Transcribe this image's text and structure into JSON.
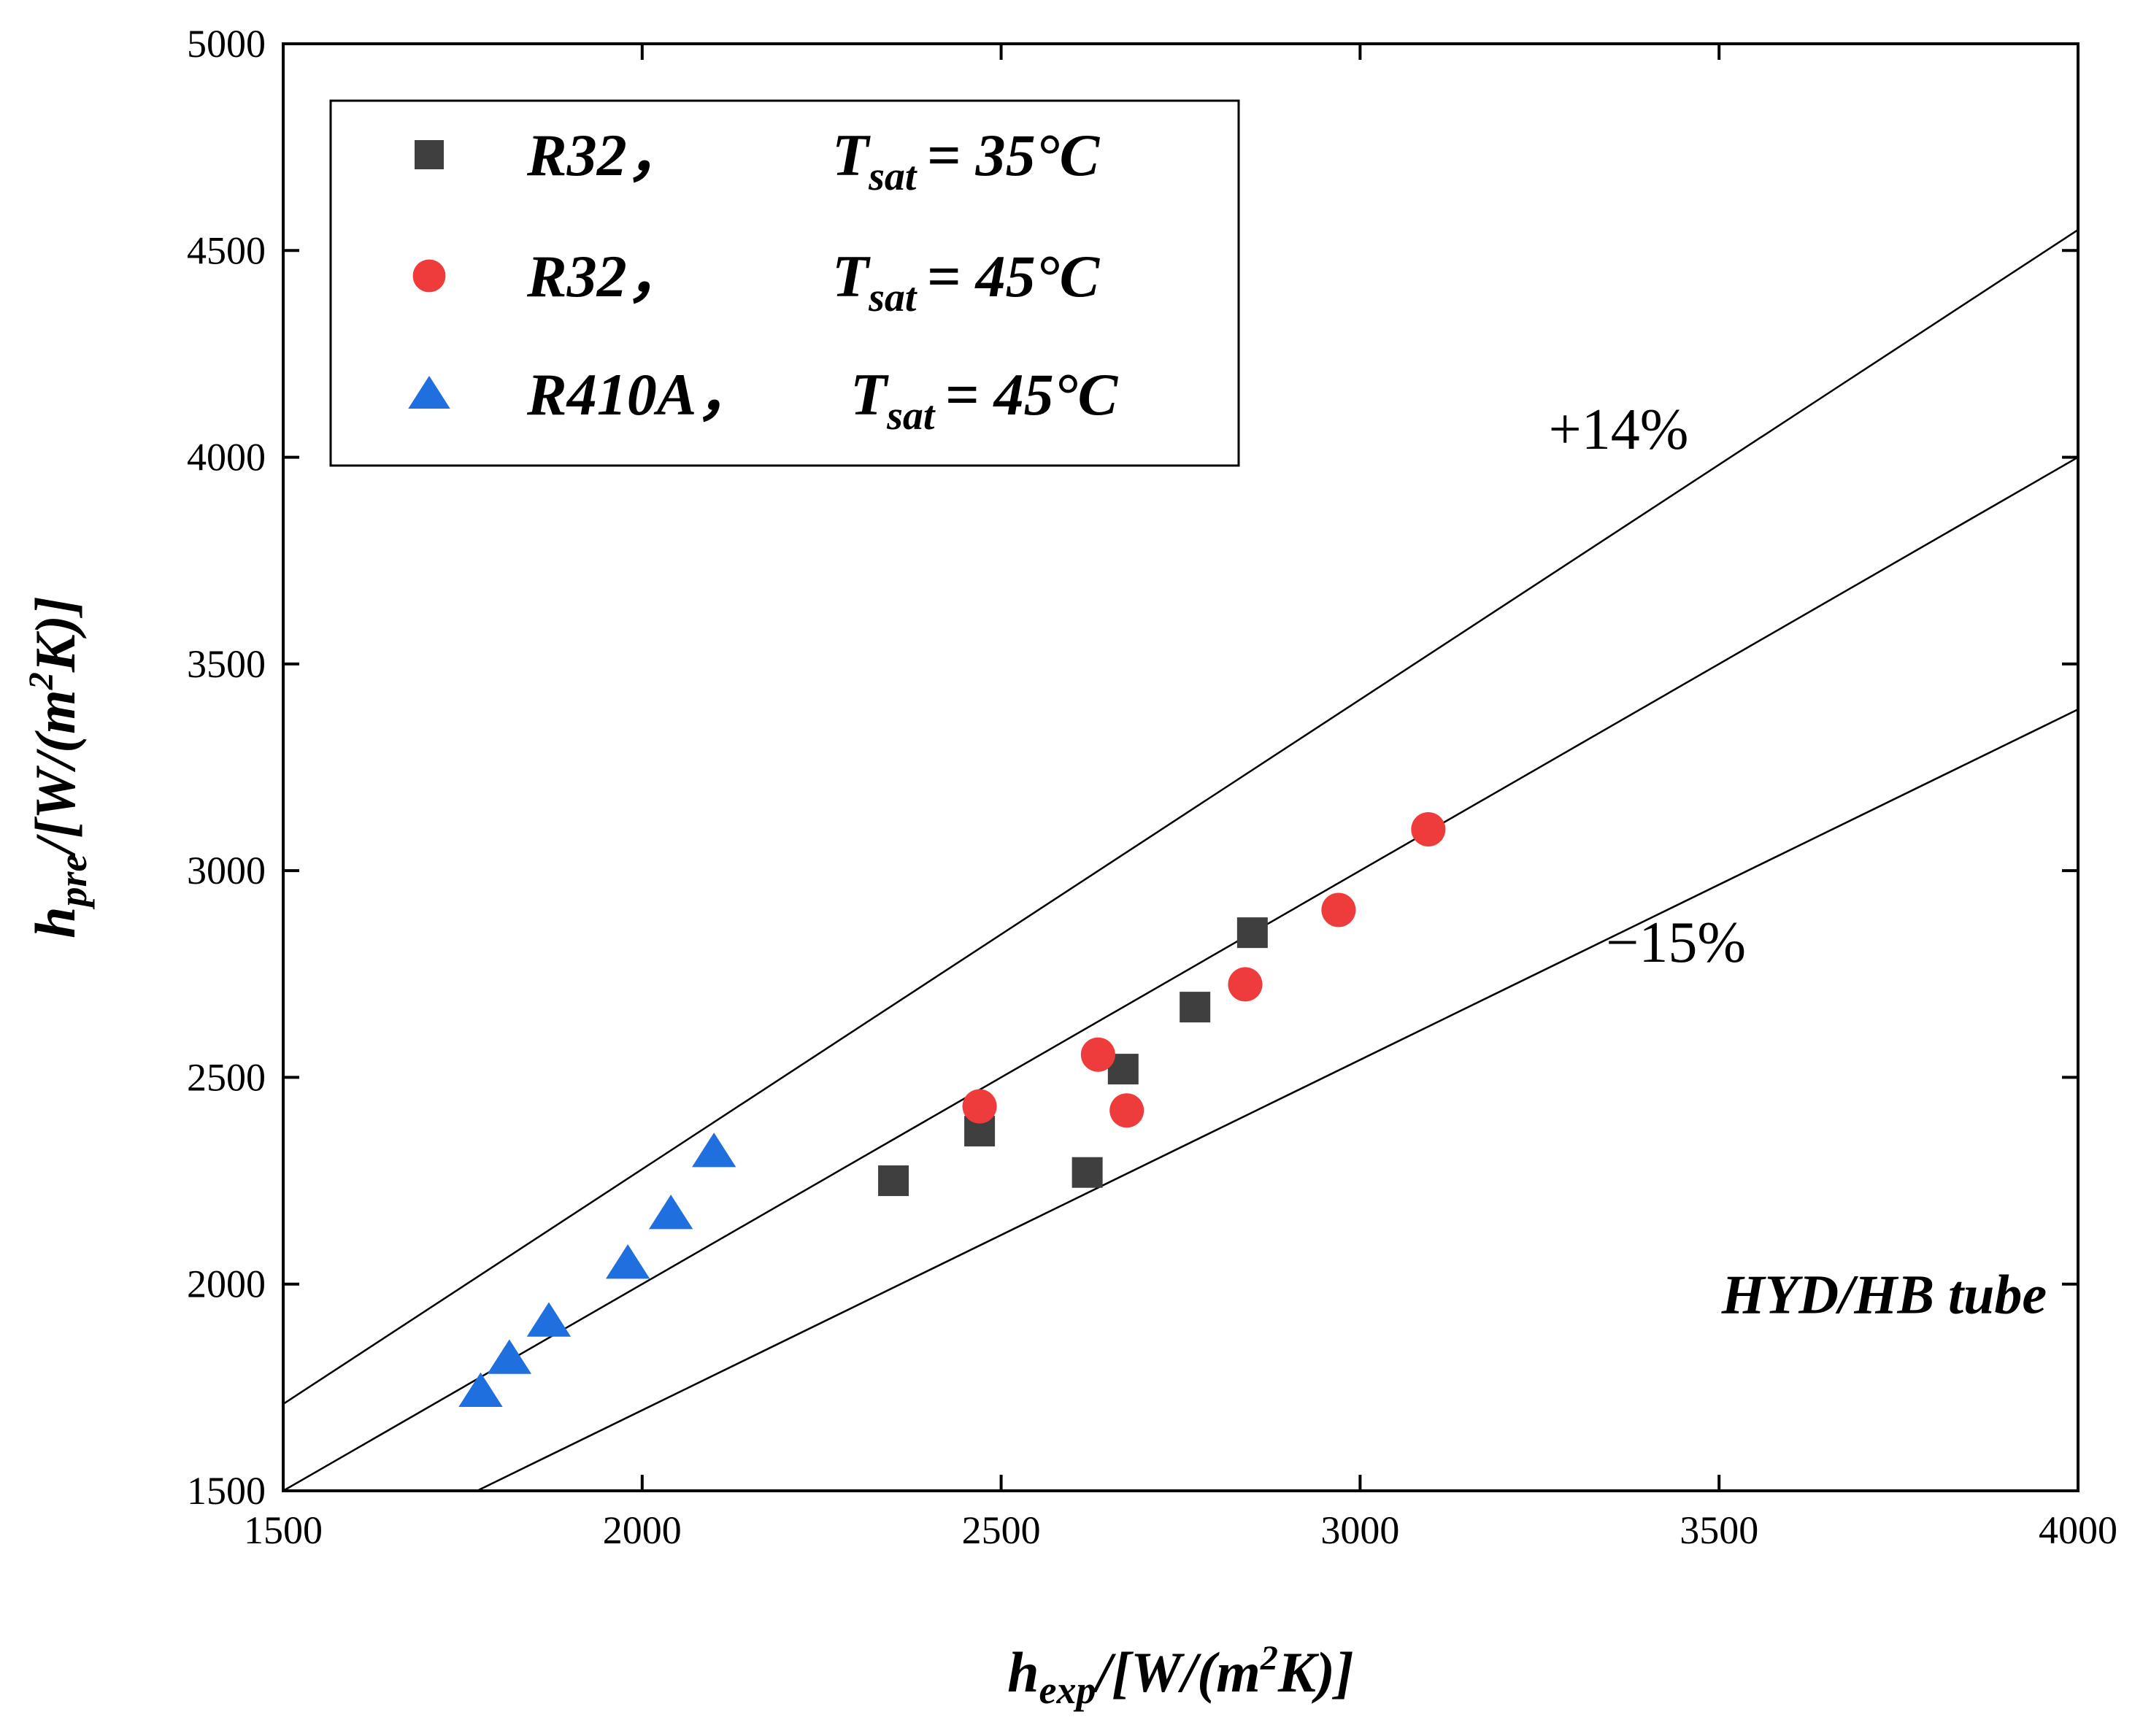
{
  "chart_data": {
    "type": "scatter",
    "title": "",
    "xlabel": "h_exp/[W/(m²K)]",
    "ylabel": "h_pre/[W/(m²K)]",
    "xlabel_parts": {
      "symbol": "h",
      "subscript": "exp",
      "unit_open": "/[W/(m",
      "unit_power": "2",
      "unit_close": "K)]"
    },
    "ylabel_parts": {
      "symbol": "h",
      "subscript": "pre",
      "unit_open": "/[W/(m",
      "unit_power": "2",
      "unit_close": "K)]"
    },
    "xlim": [
      1500,
      4000
    ],
    "ylim": [
      1500,
      5000
    ],
    "xticks": [
      1500,
      2000,
      2500,
      3000,
      3500,
      4000
    ],
    "yticks": [
      1500,
      2000,
      2500,
      3000,
      3500,
      4000,
      4500,
      5000
    ],
    "grid": false,
    "legend_position": "top-left",
    "series": [
      {
        "name": "R32, Tsat = 35°C",
        "legend_main": "R32，",
        "legend_symbol": "T",
        "legend_sub": "sat",
        "legend_value": "= 35°C",
        "marker": "square",
        "color": "#3f3f3f",
        "points": [
          [
            2350,
            2250
          ],
          [
            2470,
            2370
          ],
          [
            2620,
            2270
          ],
          [
            2670,
            2520
          ],
          [
            2770,
            2670
          ],
          [
            2850,
            2850
          ]
        ]
      },
      {
        "name": "R32, Tsat = 45°C",
        "legend_main": "R32，",
        "legend_symbol": "T",
        "legend_sub": "sat",
        "legend_value": "= 45°C",
        "marker": "circle",
        "color": "#ee3b3b",
        "points": [
          [
            2470,
            2430
          ],
          [
            2635,
            2555
          ],
          [
            2675,
            2420
          ],
          [
            2840,
            2725
          ],
          [
            2970,
            2905
          ],
          [
            3095,
            3100
          ]
        ]
      },
      {
        "name": "R410A, Tsat = 45°C",
        "legend_main": "R410A，",
        "legend_symbol": "T",
        "legend_sub": "sat",
        "legend_value": "= 45°C",
        "marker": "triangle",
        "color": "#1f6fde",
        "points": [
          [
            1775,
            1740
          ],
          [
            1815,
            1820
          ],
          [
            1870,
            1910
          ],
          [
            1980,
            2050
          ],
          [
            2040,
            2170
          ],
          [
            2100,
            2320
          ]
        ]
      }
    ],
    "reference_lines": [
      {
        "name": "+14% line",
        "x": [
          1500,
          4000
        ],
        "y": [
          1710,
          4550
        ]
      },
      {
        "name": "parity line",
        "x": [
          1500,
          4000
        ],
        "y": [
          1500,
          4000
        ]
      },
      {
        "name": "-15% line",
        "x": [
          1770,
          4000
        ],
        "y": [
          1500,
          3390
        ]
      }
    ],
    "annotations": [
      {
        "name": "plus-14-label",
        "text": "+14%",
        "x": 3360,
        "y": 4020
      },
      {
        "name": "minus-15-label",
        "text": "−15%",
        "x": 3440,
        "y": 2780
      },
      {
        "name": "tube-label",
        "text": "HYD/HB tube",
        "x": 3730,
        "y": 1930
      }
    ]
  }
}
